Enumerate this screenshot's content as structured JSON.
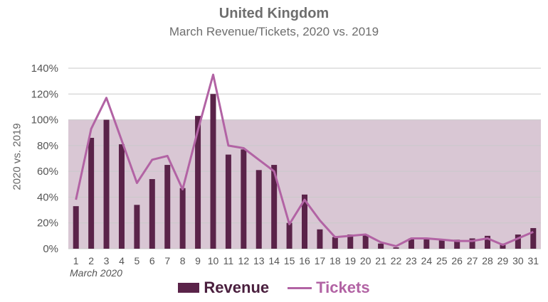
{
  "title": "United Kingdom",
  "subtitle": "March Revenue/Tickets, 2020 vs. 2019",
  "colors": {
    "revenue": "#5a2349",
    "tickets": "#b263a4",
    "band": "#d9c7d4",
    "grid": "#c9c9c9"
  },
  "chart_data": {
    "type": "bar",
    "xlabel": "March 2020",
    "ylabel": "2020 vs. 2019",
    "ylim": [
      0,
      140
    ],
    "yticks": [
      "0%",
      "20%",
      "40%",
      "60%",
      "80%",
      "100%",
      "120%",
      "140%"
    ],
    "yticks_values": [
      0,
      20,
      40,
      60,
      80,
      100,
      120,
      140
    ],
    "band": [
      0,
      100
    ],
    "categories": [
      "1",
      "2",
      "3",
      "4",
      "5",
      "6",
      "7",
      "8",
      "9",
      "10",
      "11",
      "12",
      "13",
      "14",
      "15",
      "16",
      "17",
      "18",
      "19",
      "20",
      "21",
      "22",
      "23",
      "24",
      "25",
      "26",
      "27",
      "28",
      "29",
      "30",
      "31"
    ],
    "legend_position": "bottom",
    "series": [
      {
        "name": "Revenue",
        "type": "bar",
        "values": [
          33,
          86,
          100,
          81,
          34,
          54,
          65,
          47,
          103,
          120,
          73,
          77,
          61,
          65,
          20,
          42,
          15,
          9,
          11,
          11,
          4,
          1,
          8,
          8,
          7,
          7,
          8,
          10,
          4,
          11,
          16
        ]
      },
      {
        "name": "Tickets",
        "type": "line",
        "values": [
          38,
          93,
          117,
          84,
          51,
          69,
          72,
          46,
          92,
          135,
          80,
          78,
          69,
          60,
          19,
          38,
          22,
          9,
          10,
          11,
          5,
          2,
          8,
          8,
          7,
          6,
          6,
          8,
          3,
          8,
          13
        ]
      }
    ]
  }
}
